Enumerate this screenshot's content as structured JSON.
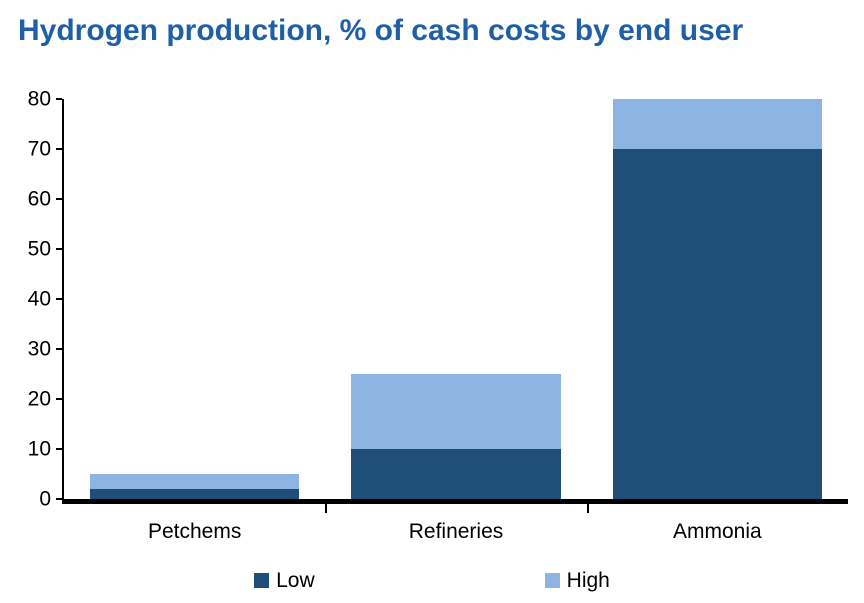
{
  "title": "Hydrogen production, % of cash costs by end user",
  "colors": {
    "title": "#1F5FA8",
    "axis": "#000000",
    "low": "#1F4E79",
    "high": "#8DB4E2"
  },
  "chart_data": {
    "type": "bar",
    "stacked": true,
    "title": "Hydrogen production, % of cash costs by end user",
    "categories": [
      "Petchems",
      "Refineries",
      "Ammonia"
    ],
    "series": [
      {
        "name": "Low",
        "color": "#1F4E79",
        "values": [
          2,
          10,
          70
        ]
      },
      {
        "name": "High",
        "color": "#8DB4E2",
        "values": [
          3,
          15,
          10
        ]
      }
    ],
    "stacked_totals": [
      5,
      25,
      80
    ],
    "ylim": [
      0,
      80
    ],
    "yticks": [
      0,
      10,
      20,
      30,
      40,
      50,
      60,
      70,
      80
    ],
    "xlabel": "",
    "ylabel": "",
    "grid": false,
    "legend_position": "bottom",
    "legend": [
      "Low",
      "High"
    ]
  }
}
